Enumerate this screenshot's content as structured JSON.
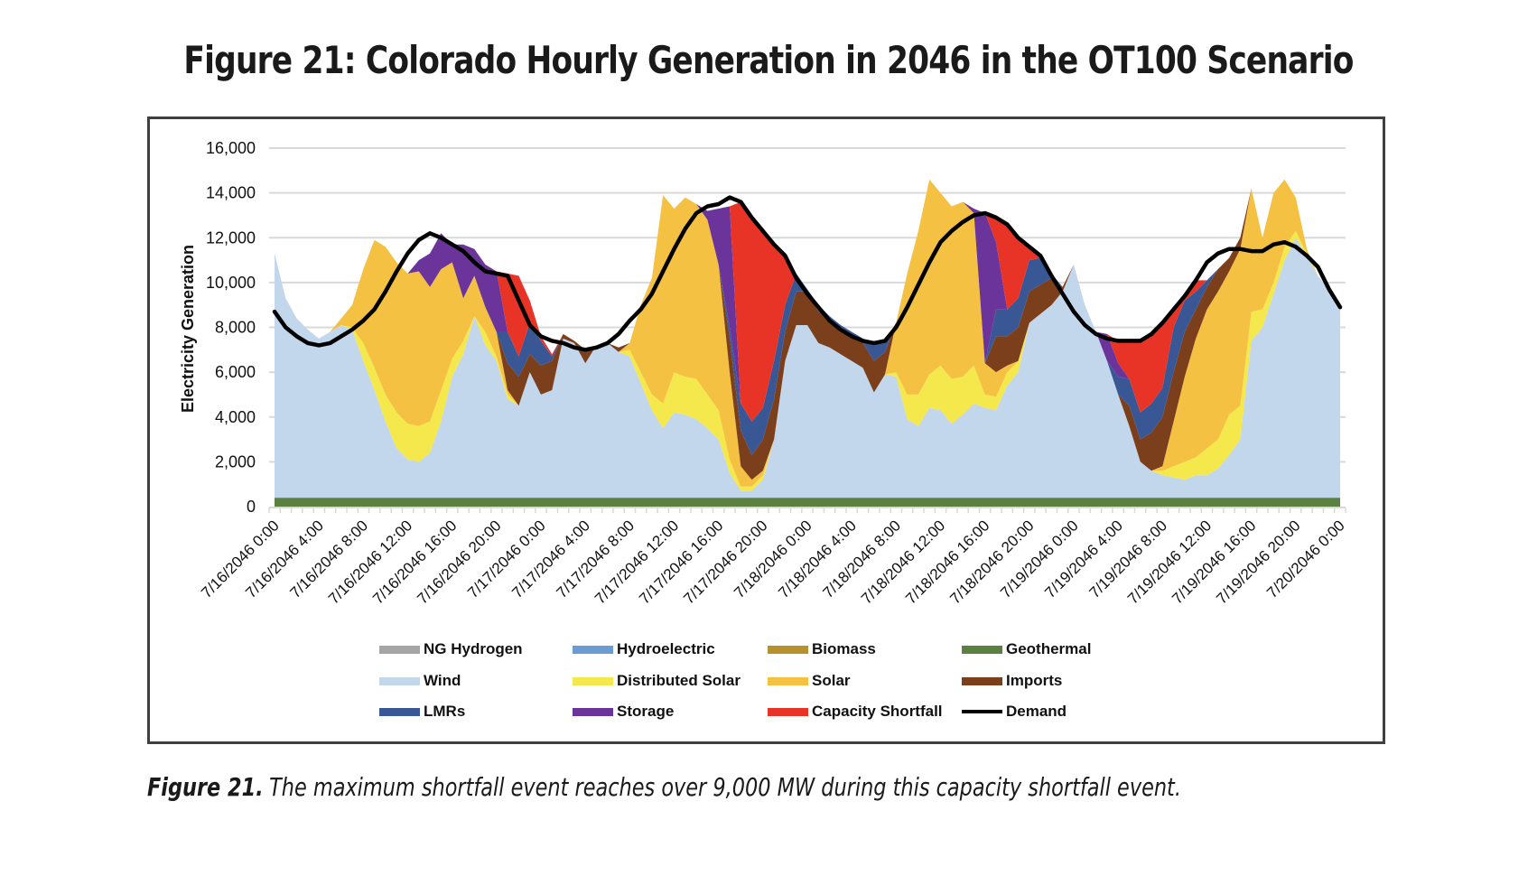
{
  "title": "Figure 21: Colorado Hourly Generation in 2046 in the OT100 Scenario",
  "caption": {
    "label": "Figure 21.",
    "text": "The maximum shortfall event reaches over 9,000 MW during this capacity shortfall event."
  },
  "chart_data": {
    "type": "area",
    "stacked": true,
    "title": "Figure 21: Colorado Hourly Generation in 2046 in the OT100 Scenario",
    "xlabel": "",
    "ylabel": "Electricity Generation",
    "ylim": [
      0,
      16000
    ],
    "yticks": [
      0,
      2000,
      4000,
      6000,
      8000,
      10000,
      12000,
      14000,
      16000
    ],
    "ytick_labels": [
      "0",
      "2,000",
      "4,000",
      "6,000",
      "8,000",
      "10,000",
      "12,000",
      "14,000",
      "16,000"
    ],
    "x_unit": "hour",
    "x_start": "7/16/2046 0:00",
    "x_range_hours": [
      0,
      96
    ],
    "xtick_labels": [
      "7/16/2046 0:00",
      "7/16/2046 4:00",
      "7/16/2046 8:00",
      "7/16/2046 12:00",
      "7/16/2046 16:00",
      "7/16/2046 20:00",
      "7/17/2046 0:00",
      "7/17/2046 4:00",
      "7/17/2046 8:00",
      "7/17/2046 12:00",
      "7/17/2046 16:00",
      "7/17/2046 20:00",
      "7/18/2046 0:00",
      "7/18/2046 4:00",
      "7/18/2046 8:00",
      "7/18/2046 12:00",
      "7/18/2046 16:00",
      "7/18/2046 20:00",
      "7/19/2046 0:00",
      "7/19/2046 4:00",
      "7/19/2046 8:00",
      "7/19/2046 12:00",
      "7/19/2046 16:00",
      "7/19/2046 20:00",
      "7/20/2046 0:00"
    ],
    "grid": true,
    "legend_position": "bottom",
    "legend": [
      {
        "name": "NG Hydrogen",
        "color": "#a5a5a5",
        "kind": "area"
      },
      {
        "name": "Hydroelectric",
        "color": "#6a9bd3",
        "kind": "area"
      },
      {
        "name": "Biomass",
        "color": "#b8902e",
        "kind": "area"
      },
      {
        "name": "Geothermal",
        "color": "#5b8140",
        "kind": "area"
      },
      {
        "name": "Wind",
        "color": "#c2d6ec",
        "kind": "area"
      },
      {
        "name": "Distributed Solar",
        "color": "#f4e84c",
        "kind": "area"
      },
      {
        "name": "Solar",
        "color": "#f4c142",
        "kind": "area"
      },
      {
        "name": "Imports",
        "color": "#7b3f1b",
        "kind": "area"
      },
      {
        "name": "LMRs",
        "color": "#3a5795",
        "kind": "area"
      },
      {
        "name": "Storage",
        "color": "#6b349a",
        "kind": "area"
      },
      {
        "name": "Capacity Shortfall",
        "color": "#e83426",
        "kind": "area"
      },
      {
        "name": "Demand",
        "color": "#000000",
        "kind": "line"
      }
    ],
    "stack_order": [
      "NG Hydrogen",
      "Hydroelectric",
      "Biomass",
      "Geothermal",
      "Wind",
      "Distributed Solar",
      "Solar",
      "Imports",
      "LMRs",
      "Storage",
      "Capacity Shortfall"
    ],
    "series": [
      {
        "name": "NG Hydrogen",
        "values": [
          0
        ]
      },
      {
        "name": "Hydroelectric",
        "values": [
          0
        ]
      },
      {
        "name": "Biomass",
        "values": [
          0
        ]
      },
      {
        "name": "Geothermal",
        "values": [
          400
        ]
      },
      {
        "name": "Wind",
        "values": [
          10900,
          8900,
          8000,
          7500,
          7100,
          7400,
          7700,
          7500,
          6100,
          4800,
          3400,
          2200,
          1700,
          1600,
          2000,
          3400,
          5400,
          6400,
          8100,
          6800,
          6100,
          4400,
          4100,
          5600,
          4600,
          4800,
          7100,
          6900,
          6000,
          6800,
          6900,
          6500,
          6300,
          5100,
          3900,
          3100,
          3800,
          3700,
          3500,
          3100,
          2600,
          1100,
          300,
          300,
          800,
          2600,
          6100,
          7700,
          7700,
          6900,
          6700,
          6400,
          6100,
          5800,
          4700,
          5500,
          5400,
          3500,
          3200,
          4000,
          3900,
          3300,
          3700,
          4200,
          4000,
          3900,
          5000,
          5600,
          7800,
          8200,
          8600,
          9200,
          10400,
          8600,
          7400,
          6100,
          4600,
          3200,
          1600,
          1200,
          1000,
          900,
          800,
          1000,
          1000,
          1300,
          1900,
          2600,
          7000,
          7600,
          9100,
          10600,
          11600,
          10800,
          9900,
          9300,
          8500
        ]
      },
      {
        "name": "Distributed Solar",
        "values": [
          0,
          0,
          0,
          0,
          0,
          0,
          0,
          100,
          800,
          1000,
          1200,
          1600,
          1600,
          1600,
          1400,
          1400,
          800,
          600,
          0,
          600,
          200,
          200,
          0,
          0,
          0,
          0,
          0,
          0,
          0,
          0,
          0,
          0,
          300,
          500,
          700,
          1100,
          1800,
          1700,
          1800,
          1500,
          1300,
          600,
          200,
          200,
          200,
          0,
          0,
          0,
          0,
          0,
          0,
          0,
          0,
          0,
          0,
          0,
          200,
          1100,
          1400,
          1500,
          2000,
          2000,
          1700,
          1700,
          600,
          600,
          600,
          500,
          0,
          0,
          0,
          0,
          0,
          0,
          0,
          0,
          0,
          0,
          0,
          0,
          200,
          500,
          800,
          800,
          1200,
          1300,
          1800,
          1500,
          1300,
          800,
          500,
          600,
          300,
          100,
          0,
          0,
          0
        ]
      },
      {
        "name": "Solar",
        "values": [
          0,
          0,
          0,
          0,
          0,
          0,
          300,
          1000,
          3300,
          5700,
          6600,
          6700,
          6700,
          6900,
          6000,
          5400,
          4300,
          1900,
          1800,
          1100,
          1100,
          200,
          0,
          0,
          0,
          0,
          0,
          0,
          0,
          0,
          0,
          0,
          300,
          3000,
          5200,
          9300,
          7300,
          8000,
          7800,
          7800,
          6500,
          3900,
          900,
          300,
          200,
          0,
          0,
          0,
          0,
          0,
          0,
          0,
          0,
          0,
          0,
          0,
          2200,
          5400,
          7300,
          8700,
          7700,
          7700,
          7800,
          6800,
          1400,
          1100,
          300,
          0,
          0,
          0,
          0,
          0,
          0,
          0,
          0,
          0,
          0,
          0,
          0,
          0,
          200,
          2000,
          3800,
          5300,
          6200,
          6600,
          6400,
          7000,
          5500,
          3200,
          4000,
          3000,
          1500,
          200,
          0,
          0,
          0
        ]
      },
      {
        "name": "Imports",
        "values": [
          0,
          0,
          0,
          0,
          0,
          0,
          0,
          0,
          0,
          0,
          0,
          0,
          0,
          0,
          0,
          0,
          0,
          0,
          0,
          0,
          0,
          1200,
          1300,
          800,
          1300,
          1300,
          200,
          100,
          600,
          0,
          0,
          200,
          0,
          0,
          0,
          0,
          0,
          0,
          0,
          0,
          0,
          1500,
          1600,
          1100,
          1400,
          1800,
          1300,
          1500,
          1500,
          1400,
          1300,
          1200,
          1200,
          1100,
          1400,
          1000,
          0,
          0,
          0,
          0,
          0,
          0,
          0,
          0,
          0,
          1600,
          1300,
          1500,
          1400,
          1300,
          1200,
          200,
          0,
          0,
          0,
          0,
          0,
          900,
          1000,
          1700,
          2200,
          2200,
          2000,
          1300,
          1000,
          1000,
          600,
          500,
          0,
          0,
          0,
          0,
          0,
          0,
          0,
          0,
          0
        ]
      },
      {
        "name": "LMRs",
        "values": [
          0,
          0,
          0,
          0,
          0,
          0,
          0,
          0,
          0,
          0,
          0,
          0,
          0,
          0,
          0,
          0,
          0,
          0,
          0,
          0,
          0,
          1400,
          900,
          1400,
          1100,
          200,
          0,
          0,
          0,
          0,
          0,
          0,
          0,
          0,
          0,
          0,
          0,
          0,
          0,
          0,
          0,
          500,
          1200,
          1500,
          1400,
          1700,
          1200,
          800,
          100,
          300,
          100,
          100,
          100,
          200,
          800,
          500,
          0,
          0,
          0,
          0,
          0,
          0,
          0,
          0,
          0,
          1200,
          1200,
          1300,
          1400,
          1200,
          200,
          0,
          0,
          0,
          0,
          0,
          800,
          1200,
          1200,
          1300,
          1300,
          2000,
          1400,
          800,
          300,
          0,
          0,
          0,
          0,
          0,
          0,
          0,
          0,
          0,
          0,
          0,
          0
        ]
      },
      {
        "name": "Storage",
        "values": [
          0,
          0,
          0,
          0,
          0,
          0,
          0,
          0,
          0,
          0,
          0,
          0,
          0,
          500,
          1500,
          1600,
          800,
          2400,
          1200,
          1900,
          2700,
          0,
          0,
          0,
          0,
          0,
          0,
          0,
          0,
          0,
          0,
          0,
          0,
          0,
          0,
          0,
          0,
          0,
          0,
          400,
          2500,
          5400,
          0,
          0,
          0,
          0,
          0,
          0,
          0,
          0,
          0,
          0,
          0,
          0,
          0,
          0,
          0,
          0,
          0,
          0,
          0,
          0,
          0,
          200,
          6700,
          3000,
          0,
          0,
          0,
          0,
          0,
          0,
          0,
          0,
          0,
          1200,
          600,
          0,
          0,
          0,
          0,
          0,
          0,
          0,
          0,
          0,
          0,
          0,
          0,
          0,
          0,
          0,
          0,
          0,
          0,
          0,
          0
        ]
      },
      {
        "name": "Capacity Shortfall",
        "values": [
          0,
          0,
          0,
          0,
          0,
          0,
          0,
          0,
          0,
          0,
          0,
          0,
          0,
          0,
          0,
          0,
          0,
          0,
          0,
          0,
          0,
          2600,
          3600,
          1000,
          200,
          100,
          0,
          0,
          0,
          0,
          0,
          0,
          0,
          0,
          0,
          0,
          0,
          0,
          0,
          0,
          0,
          0,
          9000,
          9100,
          7900,
          5200,
          2200,
          0,
          0,
          0,
          0,
          0,
          0,
          0,
          0,
          0,
          0,
          0,
          0,
          0,
          0,
          0,
          0,
          0,
          0,
          1100,
          3800,
          2700,
          600,
          100,
          0,
          0,
          0,
          0,
          0,
          0,
          1000,
          1700,
          3200,
          3100,
          2900,
          800,
          200,
          500,
          0,
          0,
          0,
          0,
          0,
          0,
          0,
          0,
          0,
          0,
          0,
          0,
          0
        ]
      },
      {
        "name": "Demand",
        "values": [
          8700,
          8000,
          7600,
          7300,
          7200,
          7300,
          7600,
          7900,
          8300,
          8800,
          9600,
          10500,
          11300,
          11900,
          12200,
          12000,
          11700,
          11400,
          10900,
          10500,
          10400,
          10300,
          9200,
          8100,
          7600,
          7400,
          7300,
          7100,
          7000,
          7100,
          7300,
          7700,
          8300,
          8800,
          9500,
          10500,
          11500,
          12400,
          13100,
          13400,
          13500,
          13800,
          13600,
          12900,
          12300,
          11700,
          11200,
          10200,
          9500,
          8900,
          8300,
          7900,
          7600,
          7400,
          7300,
          7400,
          8000,
          8900,
          9900,
          10900,
          11800,
          12300,
          12700,
          13000,
          13100,
          12900,
          12600,
          12000,
          11600,
          11200,
          10300,
          9500,
          8700,
          8100,
          7700,
          7500,
          7400,
          7400,
          7400,
          7700,
          8200,
          8800,
          9400,
          10100,
          10900,
          11300,
          11500,
          11500,
          11400,
          11400,
          11700,
          11800,
          11600,
          11200,
          10700,
          9700,
          8900
        ]
      }
    ]
  }
}
